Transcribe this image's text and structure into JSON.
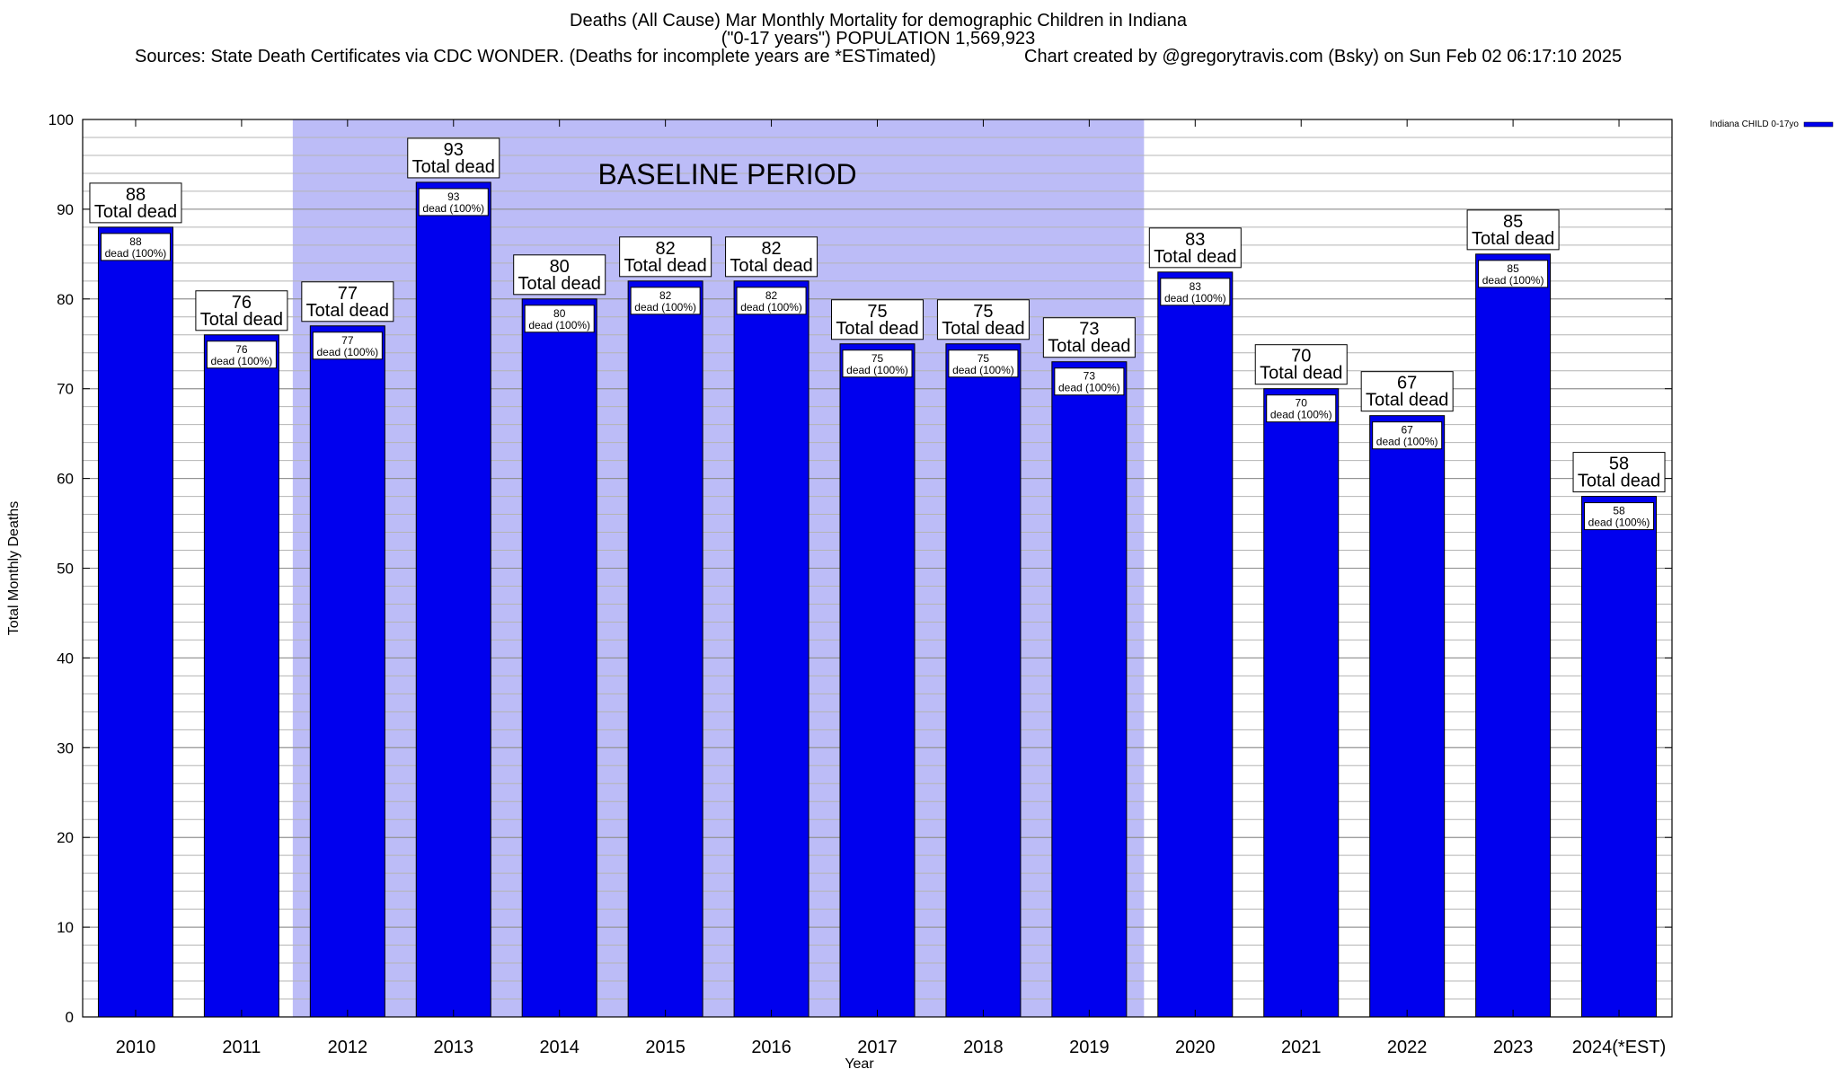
{
  "header": {
    "title_line1": "Deaths (All Cause) Mar Monthly Mortality for demographic Children in Indiana",
    "title_line2": "(\"0-17 years\") POPULATION 1,569,923",
    "sources": "Sources: State Death Certificates via CDC WONDER. (Deaths for incomplete years are *ESTimated)",
    "credit": "Chart created by @gregorytravis.com (Bsky) on Sun Feb 02 06:17:10 2025"
  },
  "chart_data": {
    "type": "bar",
    "title": "Deaths (All Cause) Mar Monthly Mortality for demographic Children in Indiana",
    "xlabel": "Year",
    "ylabel": "Total Monthly Deaths",
    "ylim": [
      0,
      100
    ],
    "yticks": [
      0,
      10,
      20,
      30,
      40,
      50,
      60,
      70,
      80,
      90,
      100
    ],
    "grid": true,
    "categories": [
      "2010",
      "2011",
      "2012",
      "2013",
      "2014",
      "2015",
      "2016",
      "2017",
      "2018",
      "2019",
      "2020",
      "2021",
      "2022",
      "2023",
      "2024(*EST)"
    ],
    "series": [
      {
        "name": "Indiana CHILD 0-17yo",
        "values": [
          88,
          76,
          77,
          93,
          80,
          82,
          82,
          75,
          75,
          73,
          83,
          70,
          67,
          85,
          58
        ]
      }
    ],
    "annotation_top_text": "Total dead",
    "annotation_inner_text": "dead (100%)",
    "baseline_period": {
      "label": "BASELINE PERIOD",
      "start": "2012",
      "end": "2019"
    },
    "legend_position": "top-right",
    "colors": {
      "bar": "#0000ee",
      "bar_edge": "#000000",
      "baseline_shade": "#bcbcf7",
      "legend_swatch": "#0000ee"
    }
  }
}
